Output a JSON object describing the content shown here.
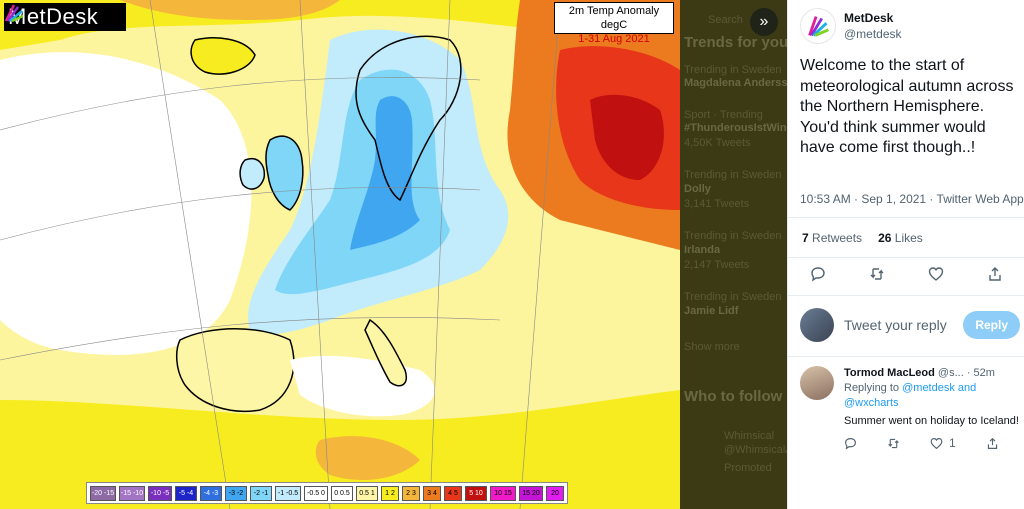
{
  "map": {
    "logo_text": "MetDesk",
    "title_line1": "2m Temp Anomaly degC",
    "title_line2": "1-31 Aug 2021",
    "legend": [
      {
        "label": "-20 -15",
        "color": "#8d6aa3"
      },
      {
        "label": "-15 -10",
        "color": "#a474c4"
      },
      {
        "label": "-10 -5",
        "color": "#7b2fbf"
      },
      {
        "label": "-5 -4",
        "color": "#1e25c8"
      },
      {
        "label": "-4 -3",
        "color": "#2f6fe0"
      },
      {
        "label": "-3 -2",
        "color": "#41a6f0"
      },
      {
        "label": "-2 -1",
        "color": "#7fd6f7"
      },
      {
        "label": "-1 -0.5",
        "color": "#c2ecfb"
      },
      {
        "label": "-0.5 0",
        "color": "#ffffff"
      },
      {
        "label": "0 0.5",
        "color": "#ffffff"
      },
      {
        "label": "0.5 1",
        "color": "#fdf6a6"
      },
      {
        "label": "1 2",
        "color": "#f7ec1f"
      },
      {
        "label": "2 3",
        "color": "#f5b63c"
      },
      {
        "label": "3 4",
        "color": "#ec7a1e"
      },
      {
        "label": "4 5",
        "color": "#e8361b"
      },
      {
        "label": "5 10",
        "color": "#c01010"
      },
      {
        "label": "10 15",
        "color": "#f01ac8"
      },
      {
        "label": "15 20",
        "color": "#c415d6"
      },
      {
        "label": "20",
        "color": "#e01ef0"
      }
    ]
  },
  "background": {
    "search_label": "Search",
    "trends_header": "Trends for you",
    "trends": [
      {
        "context": "Trending in Sweden",
        "name": "Magdalena Anderss",
        "count": ""
      },
      {
        "context": "Sport · Trending",
        "name": "#ThunderousIstWin",
        "count": "4,50K Tweets"
      },
      {
        "context": "Trending in Sweden",
        "name": "Dolly",
        "count": "3,141 Tweets"
      },
      {
        "context": "Trending in Sweden",
        "name": "Irlanda",
        "count": "2,147 Tweets"
      },
      {
        "context": "Trending in Sweden",
        "name": "Jamie Lidf",
        "count": ""
      }
    ],
    "show_more": "Show more",
    "who_to_follow": "Who to follow",
    "follow_name": "Whimsical",
    "follow_handle": "@WhimsicalA",
    "follow_meta": "Promoted"
  },
  "tweet": {
    "author_name": "MetDesk",
    "author_handle": "@metdesk",
    "text": "Welcome to the start of meteorological autumn across the Northern Hemisphere. You'd think summer would have come first though..!",
    "meta": "10:53 AM · Sep 1, 2021 · Twitter Web App",
    "retweets_count": "7",
    "retweets_label": "Retweets",
    "likes_count": "26",
    "likes_label": "Likes",
    "reply_placeholder": "Tweet your reply",
    "reply_button": "Reply"
  },
  "comment": {
    "name": "Tormod MacLeod",
    "handle": "@s...",
    "time": "· 52m",
    "replying_to": "Replying to",
    "mention1": "@metdesk",
    "and": "and",
    "mention2": "@wxcharts",
    "text": "Summer went on holiday to Iceland!",
    "likes": "1"
  }
}
